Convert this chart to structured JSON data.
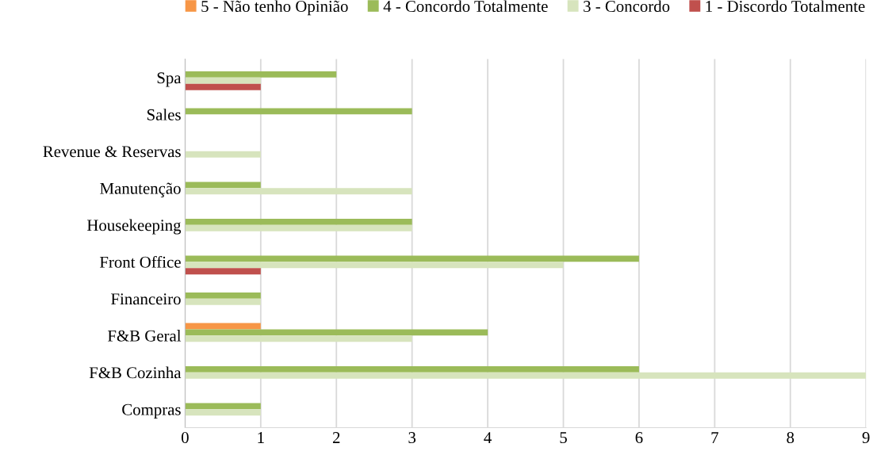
{
  "chart_data": {
    "type": "bar",
    "orientation": "horizontal",
    "categories": [
      "Spa",
      "Sales",
      "Revenue & Reservas",
      "Manutenção",
      "Housekeeping",
      "Front Office",
      "Financeiro",
      "F&B Geral",
      "F&B Cozinha",
      "Compras"
    ],
    "series": [
      {
        "name": "5 - Não tenho Opinião",
        "color": "#f79646",
        "values": [
          null,
          null,
          null,
          null,
          null,
          null,
          null,
          1,
          null,
          null
        ]
      },
      {
        "name": "4 - Concordo Totalmente",
        "color": "#9bbb59",
        "values": [
          2,
          3,
          null,
          1,
          3,
          6,
          1,
          4,
          6,
          1
        ]
      },
      {
        "name": "3 - Concordo",
        "color": "#d7e4bd",
        "values": [
          1,
          null,
          1,
          3,
          3,
          5,
          1,
          3,
          9,
          1
        ]
      },
      {
        "name": "1 - Discordo Totalmente",
        "color": "#c0504d",
        "values": [
          1,
          null,
          null,
          null,
          null,
          1,
          null,
          null,
          null,
          null
        ]
      }
    ],
    "xlim": [
      0,
      9
    ],
    "xticks": [
      0,
      1,
      2,
      3,
      4,
      5,
      6,
      7,
      8,
      9
    ],
    "grid": "x",
    "legend": "top"
  }
}
